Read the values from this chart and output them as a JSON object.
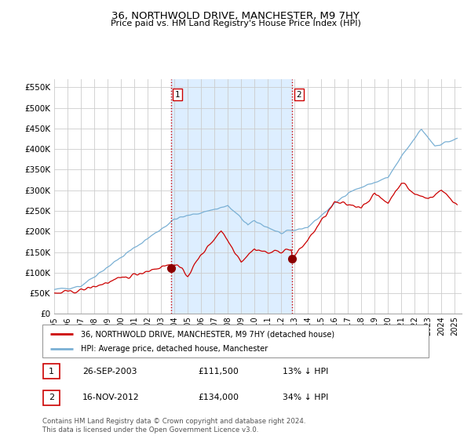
{
  "title": "36, NORTHWOLD DRIVE, MANCHESTER, M9 7HY",
  "subtitle": "Price paid vs. HM Land Registry's House Price Index (HPI)",
  "ylim": [
    0,
    570000
  ],
  "yticks": [
    0,
    50000,
    100000,
    150000,
    200000,
    250000,
    300000,
    350000,
    400000,
    450000,
    500000,
    550000
  ],
  "legend_line1": "36, NORTHWOLD DRIVE, MANCHESTER, M9 7HY (detached house)",
  "legend_line2": "HPI: Average price, detached house, Manchester",
  "annotation1_label": "1",
  "annotation1_date": "26-SEP-2003",
  "annotation1_price": "£111,500",
  "annotation1_hpi": "13% ↓ HPI",
  "annotation2_label": "2",
  "annotation2_date": "16-NOV-2012",
  "annotation2_price": "£134,000",
  "annotation2_hpi": "34% ↓ HPI",
  "footnote": "Contains HM Land Registry data © Crown copyright and database right 2024.\nThis data is licensed under the Open Government Licence v3.0.",
  "price_color": "#cc0000",
  "hpi_color": "#7ab0d4",
  "shade_color": "#ddeeff",
  "vline_color": "#cc0000",
  "marker_color": "#8b0000",
  "transaction1_x": 2003.75,
  "transaction1_y": 111500,
  "transaction2_x": 2012.83,
  "transaction2_y": 134000,
  "vline1_x": 2003.75,
  "vline2_x": 2012.83,
  "xmin": 1995,
  "xmax": 2025.5,
  "xticks": [
    1995,
    1996,
    1997,
    1998,
    1999,
    2000,
    2001,
    2002,
    2003,
    2004,
    2005,
    2006,
    2007,
    2008,
    2009,
    2010,
    2011,
    2012,
    2013,
    2014,
    2015,
    2016,
    2017,
    2018,
    2019,
    2020,
    2021,
    2022,
    2023,
    2024,
    2025
  ]
}
